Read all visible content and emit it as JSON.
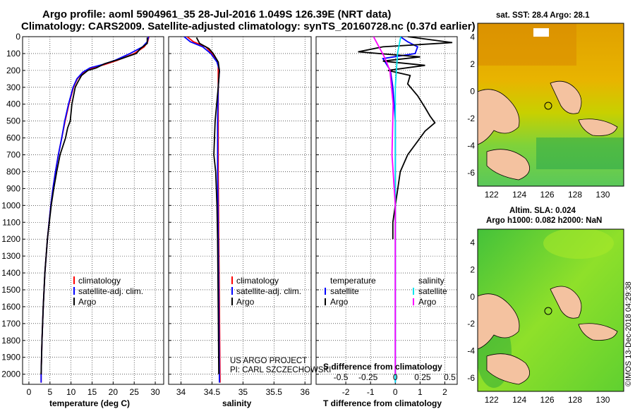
{
  "title": {
    "line1": "Argo profile: aoml 5904961_35 28-Jul-2016 1.049S 126.39E (NRT data)",
    "line2": "Climatology: CARS2009. Satellite-adjusted climatology: synTS_20160728.nc (0.37d earlier)"
  },
  "colors": {
    "climatology": "#ff0000",
    "satellite": "#0000ff",
    "argo": "#000000",
    "sat_salinity": "#00e5ee",
    "argo_salinity": "#ff00ff"
  },
  "depth_axis": {
    "ticks": [
      "0",
      "100",
      "200",
      "300",
      "400",
      "500",
      "600",
      "700",
      "800",
      "900",
      "1000",
      "1100",
      "1200",
      "1300",
      "1400",
      "1500",
      "1600",
      "1700",
      "1800",
      "1900",
      "2000"
    ],
    "range": [
      0,
      2060
    ]
  },
  "chart_data": [
    {
      "type": "line",
      "panel": "temperature",
      "xlabel": "temperature (deg C)",
      "xlim": [
        -1.5,
        32
      ],
      "xticks": [
        "0",
        "5",
        "10",
        "15",
        "20",
        "25",
        "30"
      ],
      "ylim": [
        0,
        2060
      ],
      "legend": [
        "climatology",
        "satellite-adj. clim.",
        "Argo"
      ],
      "series": [
        {
          "name": "climatology",
          "color": "#ff0000",
          "points": [
            [
              28.5,
              0
            ],
            [
              28.2,
              30
            ],
            [
              27.4,
              60
            ],
            [
              25,
              100
            ],
            [
              21,
              140
            ],
            [
              18,
              165
            ],
            [
              15,
              185
            ],
            [
              13,
              210
            ],
            [
              11.5,
              250
            ],
            [
              10.6,
              300
            ],
            [
              9.5,
              400
            ],
            [
              8.6,
              500
            ],
            [
              7.8,
              600
            ],
            [
              7,
              700
            ],
            [
              6.3,
              800
            ],
            [
              5.7,
              900
            ],
            [
              5.2,
              1000
            ],
            [
              4.4,
              1200
            ],
            [
              3.8,
              1400
            ],
            [
              3.4,
              1600
            ],
            [
              3.1,
              1800
            ],
            [
              2.9,
              2000
            ],
            [
              2.9,
              2050
            ]
          ]
        },
        {
          "name": "satellite-adj. clim.",
          "color": "#0000ff",
          "points": [
            [
              28.4,
              0
            ],
            [
              28.1,
              30
            ],
            [
              27,
              60
            ],
            [
              24,
              100
            ],
            [
              20.5,
              140
            ],
            [
              17.5,
              165
            ],
            [
              14.5,
              185
            ],
            [
              12.8,
              210
            ],
            [
              11.4,
              250
            ],
            [
              10.5,
              300
            ],
            [
              9.4,
              400
            ],
            [
              8.5,
              500
            ],
            [
              7.8,
              600
            ],
            [
              7,
              700
            ],
            [
              6.3,
              800
            ],
            [
              5.7,
              900
            ],
            [
              5.2,
              1000
            ],
            [
              4.4,
              1200
            ],
            [
              3.8,
              1400
            ],
            [
              3.4,
              1600
            ],
            [
              3.1,
              1800
            ],
            [
              2.9,
              2000
            ],
            [
              2.9,
              2050
            ]
          ]
        },
        {
          "name": "Argo",
          "color": "#000000",
          "points": [
            [
              28.1,
              5
            ],
            [
              28.1,
              40
            ],
            [
              26.5,
              70
            ],
            [
              25.5,
              100
            ],
            [
              22,
              130
            ],
            [
              18,
              160
            ],
            [
              16,
              185
            ],
            [
              14,
              200
            ],
            [
              12.5,
              230
            ],
            [
              11.6,
              270
            ],
            [
              11,
              300
            ],
            [
              10.2,
              400
            ],
            [
              9.8,
              500
            ],
            [
              9.2,
              540
            ],
            [
              8.7,
              600
            ],
            [
              7.4,
              700
            ],
            [
              6.6,
              800
            ],
            [
              5.9,
              900
            ],
            [
              5.3,
              1000
            ],
            [
              4.4,
              1200
            ],
            [
              3.8,
              1400
            ],
            [
              3.4,
              1600
            ],
            [
              3.1,
              1800
            ],
            [
              2.9,
              2000
            ]
          ]
        }
      ]
    },
    {
      "type": "line",
      "panel": "salinity",
      "xlabel": "salinity",
      "xlim": [
        33.8,
        36.1
      ],
      "xticks": [
        "34",
        "34.5",
        "35",
        "35.5",
        "36"
      ],
      "ylim": [
        0,
        2060
      ],
      "legend": [
        "climatology",
        "satellite-adj. clim.",
        "Argo"
      ],
      "series": [
        {
          "name": "climatology",
          "color": "#ff0000",
          "points": [
            [
              34.1,
              0
            ],
            [
              34.2,
              30
            ],
            [
              34.4,
              60
            ],
            [
              34.5,
              100
            ],
            [
              34.6,
              150
            ],
            [
              34.6,
              200
            ],
            [
              34.6,
              300
            ],
            [
              34.6,
              500
            ],
            [
              34.6,
              800
            ],
            [
              34.61,
              1200
            ],
            [
              34.62,
              1600
            ],
            [
              34.63,
              2050
            ]
          ]
        },
        {
          "name": "satellite-adj. clim.",
          "color": "#0000ff",
          "points": [
            [
              34.05,
              0
            ],
            [
              34.15,
              30
            ],
            [
              34.35,
              60
            ],
            [
              34.48,
              100
            ],
            [
              34.58,
              150
            ],
            [
              34.62,
              200
            ],
            [
              34.6,
              300
            ],
            [
              34.59,
              500
            ],
            [
              34.59,
              800
            ],
            [
              34.6,
              1200
            ],
            [
              34.61,
              1600
            ],
            [
              34.62,
              2050
            ]
          ]
        },
        {
          "name": "Argo",
          "color": "#000000",
          "points": [
            [
              34.25,
              5
            ],
            [
              34.3,
              40
            ],
            [
              34.45,
              70
            ],
            [
              34.52,
              100
            ],
            [
              34.6,
              150
            ],
            [
              34.62,
              200
            ],
            [
              34.6,
              300
            ],
            [
              34.55,
              500
            ],
            [
              34.53,
              700
            ],
            [
              34.56,
              800
            ],
            [
              34.58,
              1000
            ],
            [
              34.59,
              1200
            ],
            [
              34.6,
              1600
            ],
            [
              34.61,
              2000
            ]
          ]
        }
      ]
    },
    {
      "type": "line",
      "panel": "difference",
      "xlabel": "T difference from climatology",
      "xlabel_top": "S difference from climatology",
      "xlim": [
        -3.2,
        2.5
      ],
      "xticks": [
        "-2",
        "-1",
        "0",
        "1",
        "2"
      ],
      "xticks_top": [
        "-0.5",
        "-0.25",
        "0",
        "0.25",
        "0.5"
      ],
      "ylim": [
        0,
        2060
      ],
      "legend_temperature": {
        "heading": "temperature",
        "items": [
          "satellite",
          "Argo"
        ]
      },
      "legend_salinity": {
        "heading": "salinity",
        "items": [
          "satellite",
          "Argo"
        ]
      },
      "series": [
        {
          "name": "T satellite",
          "color": "#0000ff",
          "points": [
            [
              0.2,
              0
            ],
            [
              0.5,
              30
            ],
            [
              0.9,
              60
            ],
            [
              0.8,
              100
            ],
            [
              -0.5,
              130
            ],
            [
              -0.2,
              200
            ],
            [
              -0.1,
              300
            ],
            [
              0,
              500
            ],
            [
              0,
              800
            ],
            [
              0,
              1200
            ],
            [
              0,
              1600
            ],
            [
              0,
              2050
            ]
          ]
        },
        {
          "name": "T Argo",
          "color": "#000000",
          "points": [
            [
              0.5,
              0
            ],
            [
              2.3,
              35
            ],
            [
              -0.5,
              60
            ],
            [
              -1.5,
              90
            ],
            [
              1,
              120
            ],
            [
              -0.5,
              145
            ],
            [
              1.2,
              170
            ],
            [
              -0.3,
              200
            ],
            [
              0.6,
              230
            ],
            [
              0.5,
              280
            ],
            [
              0.9,
              350
            ],
            [
              1.2,
              420
            ],
            [
              1.4,
              470
            ],
            [
              1.6,
              510
            ],
            [
              1.2,
              560
            ],
            [
              0.9,
              620
            ],
            [
              0.5,
              700
            ],
            [
              0.2,
              800
            ],
            [
              0.1,
              900
            ],
            [
              0,
              1000
            ],
            [
              -0.1,
              1100
            ],
            [
              -0.1,
              1200
            ]
          ]
        },
        {
          "name": "S satellite",
          "color": "#00e5ee",
          "points": [
            [
              0.05,
              0
            ],
            [
              0.02,
              100
            ],
            [
              0,
              300
            ],
            [
              0,
              600
            ],
            [
              0,
              1000
            ],
            [
              0,
              1500
            ],
            [
              0,
              2050
            ]
          ]
        },
        {
          "name": "S Argo",
          "color": "#ff00ff",
          "points": [
            [
              -0.2,
              0
            ],
            [
              -0.15,
              60
            ],
            [
              -0.1,
              120
            ],
            [
              -0.05,
              200
            ],
            [
              -0.02,
              400
            ],
            [
              -0.03,
              700
            ],
            [
              0,
              1000
            ],
            [
              0,
              1600
            ],
            [
              0,
              2000
            ]
          ]
        }
      ]
    }
  ],
  "credits": {
    "line1": "US ARGO PROJECT",
    "line2": "PI: CARL SZCZECHOWSKI"
  },
  "map_top": {
    "title": "sat. SST: 28.4 Argo: 28.1",
    "xticks": [
      "122",
      "124",
      "126",
      "128",
      "130"
    ],
    "yticks": [
      "4",
      "2",
      "0",
      "-2",
      "-4",
      "-6"
    ]
  },
  "map_bottom": {
    "title_line1": "Altim. SLA: 0.024",
    "title_line2": "Argo h1000: 0.082 h2000: NaN",
    "xticks": [
      "122",
      "124",
      "126",
      "128",
      "130"
    ],
    "yticks": [
      "4",
      "2",
      "0",
      "-2",
      "-4",
      "-6"
    ]
  },
  "stamp": "©IMOS 13-Dec-2018 04:29:38"
}
